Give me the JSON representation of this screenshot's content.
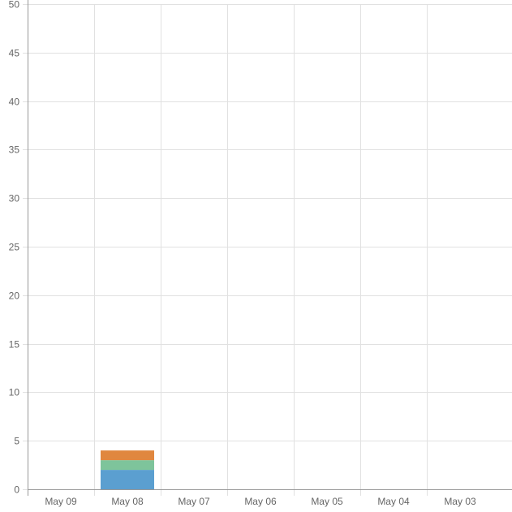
{
  "chart_data": {
    "type": "bar",
    "stacked": true,
    "categories": [
      "May 09",
      "May 08",
      "May 07",
      "May 06",
      "May 05",
      "May 04",
      "May 03"
    ],
    "series": [
      {
        "values": [
          0,
          2,
          0,
          0,
          0,
          0,
          0
        ],
        "color": "#5b9fd0"
      },
      {
        "values": [
          0,
          1,
          0,
          0,
          0,
          0,
          0
        ],
        "color": "#7ec49b"
      },
      {
        "values": [
          0,
          1,
          0,
          0,
          0,
          0,
          0
        ],
        "color": "#e0873f"
      }
    ],
    "ylim": [
      0,
      50
    ],
    "yticks": [
      0,
      5,
      10,
      15,
      20,
      25,
      30,
      35,
      40,
      45,
      50
    ],
    "grid": true,
    "legend": "none"
  }
}
